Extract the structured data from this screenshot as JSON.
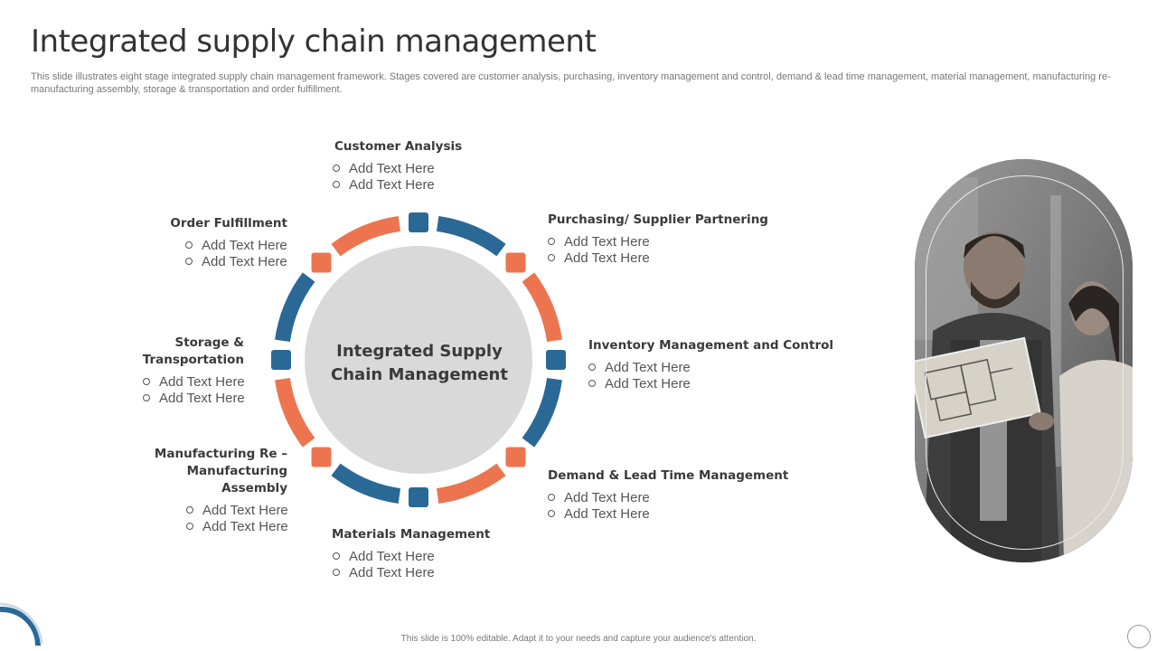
{
  "header": {
    "title": "Integrated supply chain management",
    "subtitle": "This slide illustrates eight stage integrated supply chain management framework. Stages covered are customer analysis, purchasing, inventory management and control, demand & lead time management, material management, manufacturing re-manufacturing assembly, storage & transportation and order fulfillment."
  },
  "center": {
    "line1": "Integrated Supply",
    "line2": "Chain Management"
  },
  "colors": {
    "blue": "#2a6896",
    "orange": "#ec7550",
    "center_fill": "#d9d9d9"
  },
  "stages": [
    {
      "title": "Customer Analysis",
      "bullets": [
        "Add Text Here",
        "Add Text Here"
      ]
    },
    {
      "title": "Purchasing/ Supplier Partnering",
      "bullets": [
        "Add Text Here",
        "Add Text Here"
      ]
    },
    {
      "title": "Inventory Management and Control",
      "bullets": [
        "Add Text Here",
        "Add Text Here"
      ]
    },
    {
      "title": "Demand & Lead Time Management",
      "bullets": [
        "Add Text Here",
        "Add Text Here"
      ]
    },
    {
      "title": "Materials Management",
      "bullets": [
        "Add Text Here",
        "Add Text Here"
      ]
    },
    {
      "title_line1": "Manufacturing Re –",
      "title_line2": "Manufacturing Assembly",
      "bullets": [
        "Add Text Here",
        "Add Text Here"
      ]
    },
    {
      "title": "Storage & Transportation",
      "bullets": [
        "Add Text Here",
        "Add Text Here"
      ]
    },
    {
      "title": "Order Fulfillment",
      "bullets": [
        "Add Text Here",
        "Add Text Here"
      ]
    }
  ],
  "footer": {
    "text": "This slide is 100% editable. Adapt it to your needs and capture your audience's attention."
  }
}
